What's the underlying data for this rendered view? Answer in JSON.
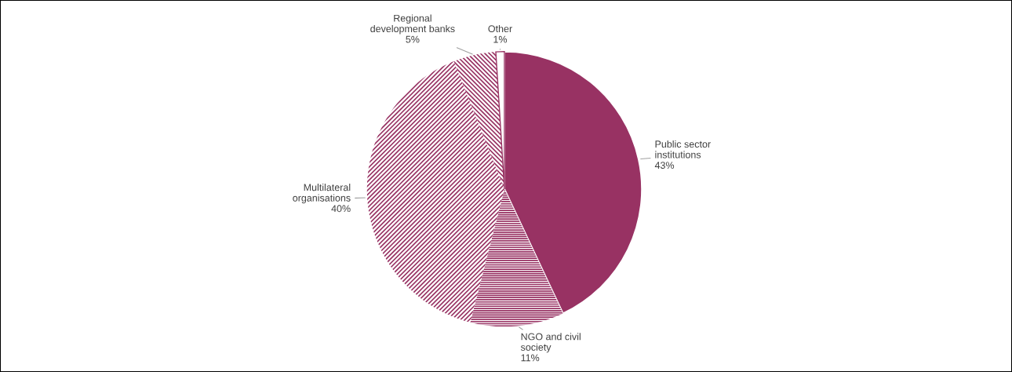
{
  "chart_data": {
    "type": "pie",
    "categories": [
      "Public sector\ninstitutions",
      "NGO and civil\nsociety",
      "Multilateral\norganisations",
      "Regional\ndevelopment banks",
      "Other"
    ],
    "values": [
      43,
      11,
      40,
      5,
      1
    ],
    "value_labels": [
      "43%",
      "11%",
      "40%",
      "5%",
      "1%"
    ],
    "colors": [
      "#983263",
      "#983263",
      "#983263",
      "#983263",
      "#ffffff"
    ]
  }
}
